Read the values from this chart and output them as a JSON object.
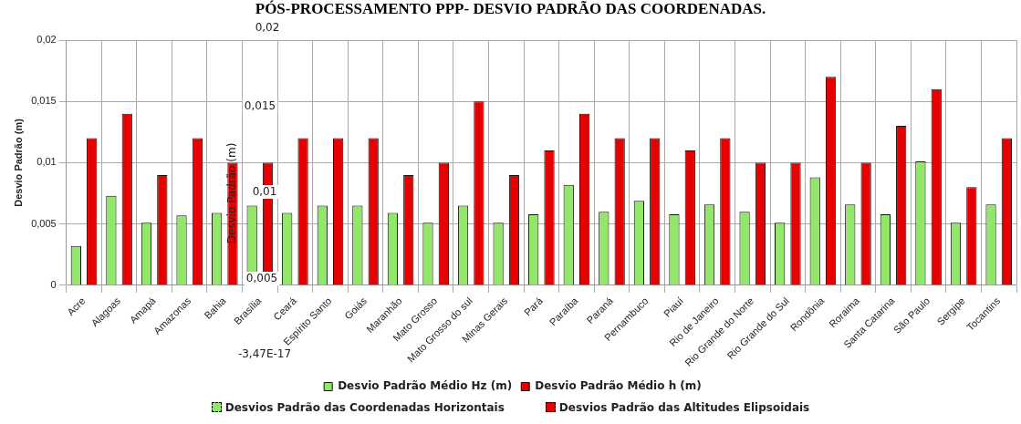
{
  "chart_data": {
    "type": "bar",
    "title": "PÓS-PROCESSAMENTO PPP- DESVIO PADRÃO DAS COORDENADAS.",
    "ylabel": "Desvio Padrão (m)",
    "categories": [
      "Acre",
      "Alagoas",
      "Amapá",
      "Amazonas",
      "Bahia",
      "Brasília",
      "Ceará",
      "Espírito Santo",
      "Goiás",
      "Maranhão",
      "Mato Grosso",
      "Mato Grosso do sul",
      "Minas Gerais",
      "Pará",
      "Paraíba",
      "Paraná",
      "Pernambuco",
      "Piauí",
      "Rio de Janeiro",
      "Rio Grande do Norte",
      "Rio Grande do Sul",
      "Rondônia",
      "Roraima",
      "Santa Catarina",
      "São Paulo",
      "Sergipe",
      "Tocantins"
    ],
    "series": [
      {
        "name": "Desvio Padrão Médio Hz (m)",
        "color": "#92e66a",
        "values": [
          0.0032,
          0.0073,
          0.0051,
          0.0057,
          0.0059,
          0.0065,
          0.0059,
          0.0065,
          0.0065,
          0.0059,
          0.0051,
          0.0065,
          0.0051,
          0.0058,
          0.0082,
          0.006,
          0.0069,
          0.0058,
          0.0066,
          0.006,
          0.0051,
          0.0088,
          0.0066,
          0.0058,
          0.0101,
          0.0051,
          0.0066
        ]
      },
      {
        "name": "Desvio Padrão Médio h (m)",
        "color": "#e60000",
        "values": [
          0.012,
          0.014,
          0.009,
          0.012,
          0.01,
          0.01,
          0.012,
          0.012,
          0.012,
          0.009,
          0.01,
          0.015,
          0.009,
          0.011,
          0.014,
          0.012,
          0.012,
          0.011,
          0.012,
          0.01,
          0.01,
          0.017,
          0.01,
          0.013,
          0.016,
          0.008,
          0.012
        ]
      }
    ],
    "ylim": [
      0,
      0.02
    ],
    "yticks": [
      {
        "value": 0,
        "label": "0"
      },
      {
        "value": 0.005,
        "label": "0,005"
      },
      {
        "value": 0.01,
        "label": "0,01"
      },
      {
        "value": 0.015,
        "label": "0,015"
      },
      {
        "value": 0.02,
        "label": "0,02"
      }
    ],
    "grid": true,
    "legend": "bottom",
    "annotations": [
      "0,02",
      "0,015",
      "Desvio Padrão (m)",
      "0,01",
      "0,005",
      "-3,47E-17",
      "Desvios Padrão das Coordenadas Horizontais",
      "Desvios Padrão das Altitudes Elipsoidais"
    ]
  }
}
